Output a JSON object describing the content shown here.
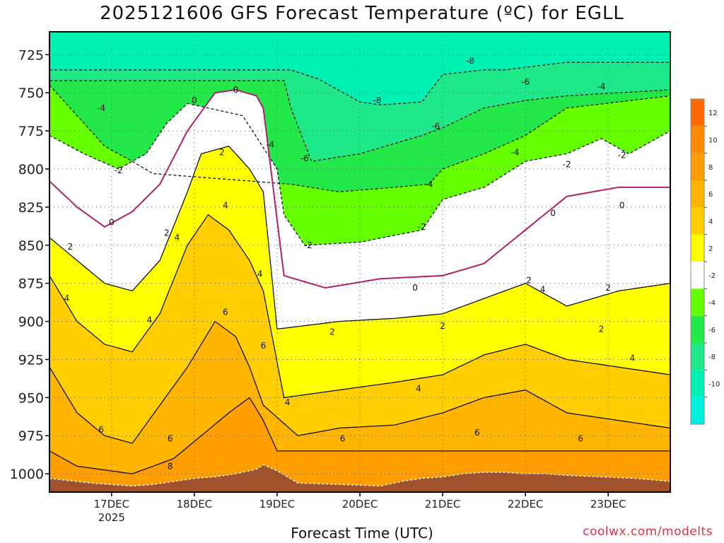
{
  "title": "2025121606 GFS Forecast Temperature (ºC) for EGLL",
  "xlabel": "Forecast Time (UTC)",
  "credit": "coolwx.com/modelts",
  "chart_data": {
    "type": "heatmap",
    "title": "2025121606 GFS Forecast Temperature (ºC) for EGLL",
    "xlabel": "Forecast Time (UTC)",
    "ylabel": "",
    "x_range": [
      "2025-12-16 06:00",
      "2025-12-23 18:00"
    ],
    "y_range_hpa": [
      1012,
      710
    ],
    "y_ticks": [
      725,
      750,
      775,
      800,
      825,
      850,
      875,
      900,
      925,
      950,
      975,
      1000
    ],
    "x_ticks": [
      {
        "label": "17DEC",
        "sub": "2025",
        "hours": 18
      },
      {
        "label": "18DEC",
        "sub": "",
        "hours": 42
      },
      {
        "label": "19DEC",
        "sub": "",
        "hours": 66
      },
      {
        "label": "20DEC",
        "sub": "",
        "hours": 90
      },
      {
        "label": "21DEC",
        "sub": "",
        "hours": 114
      },
      {
        "label": "22DEC",
        "sub": "",
        "hours": 138
      },
      {
        "label": "23DEC",
        "sub": "",
        "hours": 162
      }
    ],
    "x_max_hours": 180,
    "grid": true,
    "colorbar": {
      "ticks": [
        12,
        10,
        8,
        6,
        4,
        2,
        -2,
        -4,
        -6,
        -8,
        -10
      ],
      "bands": [
        {
          "from": 12,
          "to": 14,
          "color": "#ff6a00"
        },
        {
          "from": 10,
          "to": 12,
          "color": "#ff8a00"
        },
        {
          "from": 8,
          "to": 10,
          "color": "#ff9e00"
        },
        {
          "from": 6,
          "to": 8,
          "color": "#ffb400"
        },
        {
          "from": 4,
          "to": 6,
          "color": "#ffcd00"
        },
        {
          "from": 2,
          "to": 4,
          "color": "#ffff00"
        },
        {
          "from": -2,
          "to": 2,
          "color": "#ffffff"
        },
        {
          "from": -4,
          "to": -2,
          "color": "#66ff00"
        },
        {
          "from": -6,
          "to": -4,
          "color": "#22e84a"
        },
        {
          "from": -8,
          "to": -6,
          "color": "#1ee888"
        },
        {
          "from": -10,
          "to": -8,
          "color": "#00f0b4"
        },
        {
          "from": -12,
          "to": -10,
          "color": "#00f0e0"
        }
      ]
    },
    "surface_pressure_hpa": [
      1003,
      1006,
      1008,
      1007,
      1005,
      1003,
      1002,
      1000,
      997,
      994,
      998,
      1006,
      1007,
      1008,
      1005,
      1003,
      1002,
      1000,
      999,
      999,
      1000,
      1000,
      1001,
      1002,
      1003,
      1005
    ],
    "surface_hours": [
      0,
      12,
      24,
      30,
      36,
      42,
      48,
      54,
      60,
      62,
      66,
      72,
      84,
      96,
      102,
      108,
      114,
      120,
      126,
      132,
      138,
      144,
      150,
      160,
      170,
      180
    ],
    "surface_color": "#a0522d",
    "contours": [
      {
        "temp": -8,
        "pressure": [
          735,
          741,
          756,
          758,
          756,
          738,
          735,
          735,
          730
        ],
        "hours": [
          70,
          78,
          90,
          96,
          108,
          114,
          126,
          132,
          150
        ]
      },
      {
        "temp": -6,
        "pressure": [
          742,
          760,
          795,
          790,
          778,
          773,
          760,
          755,
          752,
          748
        ],
        "hours": [
          68,
          70,
          76,
          90,
          108,
          114,
          126,
          138,
          150,
          180
        ]
      },
      {
        "temp": -4,
        "pressure": [
          745,
          765,
          785,
          795,
          803,
          810,
          815,
          812,
          810,
          800,
          795,
          790,
          778,
          760,
          752
        ],
        "hours": [
          0,
          8,
          16,
          24,
          30,
          70,
          84,
          100,
          110,
          114,
          120,
          126,
          138,
          150,
          180
        ]
      },
      {
        "temp": -2,
        "pressure": [
          778,
          790,
          800,
          790,
          770,
          757,
          765,
          800,
          830,
          850,
          848,
          840,
          820,
          812,
          795,
          790,
          780,
          790,
          775
        ],
        "hours": [
          0,
          10,
          20,
          28,
          34,
          40,
          56,
          66,
          68,
          74,
          90,
          108,
          114,
          126,
          138,
          150,
          160,
          168,
          180
        ]
      },
      {
        "temp": 0,
        "pressure": [
          808,
          825,
          838,
          828,
          810,
          775,
          750,
          748,
          752,
          760,
          870,
          878,
          872,
          870,
          862,
          840,
          818,
          812,
          812
        ],
        "hours": [
          0,
          8,
          16,
          24,
          32,
          40,
          48,
          54,
          60,
          62,
          68,
          80,
          96,
          114,
          126,
          138,
          150,
          165,
          180
        ]
      },
      {
        "temp": 2,
        "pressure": [
          845,
          860,
          875,
          880,
          860,
          815,
          790,
          785,
          800,
          815,
          905,
          900,
          898,
          895,
          885,
          875,
          890,
          880,
          875
        ],
        "hours": [
          0,
          8,
          16,
          24,
          32,
          40,
          44,
          52,
          58,
          62,
          66,
          84,
          100,
          114,
          126,
          138,
          150,
          165,
          180
        ]
      },
      {
        "temp": 4,
        "pressure": [
          870,
          900,
          915,
          920,
          895,
          850,
          830,
          840,
          860,
          880,
          950,
          945,
          940,
          935,
          922,
          915,
          925,
          930,
          935
        ],
        "hours": [
          0,
          8,
          16,
          24,
          32,
          40,
          46,
          52,
          58,
          62,
          68,
          84,
          100,
          114,
          126,
          138,
          150,
          165,
          180
        ]
      },
      {
        "temp": 6,
        "pressure": [
          930,
          960,
          975,
          980,
          955,
          930,
          900,
          910,
          930,
          955,
          975,
          970,
          968,
          960,
          950,
          945,
          960,
          965,
          970
        ],
        "hours": [
          0,
          8,
          16,
          24,
          32,
          40,
          48,
          54,
          58,
          62,
          72,
          84,
          100,
          114,
          126,
          138,
          150,
          165,
          180
        ]
      },
      {
        "temp": 8,
        "pressure": [
          985,
          995,
          1000,
          990,
          975,
          960,
          950,
          965,
          985
        ],
        "hours": [
          0,
          8,
          24,
          36,
          44,
          52,
          58,
          62,
          66
        ]
      }
    ],
    "contour_labels": [
      {
        "text": "-8",
        "hours": 95,
        "pressure": 755
      },
      {
        "text": "-8",
        "hours": 122,
        "pressure": 729
      },
      {
        "text": "-6",
        "hours": 74,
        "pressure": 793
      },
      {
        "text": "-6",
        "hours": 112,
        "pressure": 772
      },
      {
        "text": "-6",
        "hours": 138,
        "pressure": 743
      },
      {
        "text": "-4",
        "hours": 15,
        "pressure": 760
      },
      {
        "text": "-4",
        "hours": 64,
        "pressure": 784
      },
      {
        "text": "-4",
        "hours": 110,
        "pressure": 810
      },
      {
        "text": "-4",
        "hours": 135,
        "pressure": 789
      },
      {
        "text": "-4",
        "hours": 160,
        "pressure": 746
      },
      {
        "text": "-2",
        "hours": 20,
        "pressure": 801
      },
      {
        "text": "-2",
        "hours": 75,
        "pressure": 850
      },
      {
        "text": "-2",
        "hours": 108,
        "pressure": 838
      },
      {
        "text": "-2",
        "hours": 150,
        "pressure": 797
      },
      {
        "text": "-2",
        "hours": 166,
        "pressure": 791
      },
      {
        "text": "0",
        "hours": 18,
        "pressure": 835
      },
      {
        "text": "0",
        "hours": 42,
        "pressure": 755
      },
      {
        "text": "0",
        "hours": 54,
        "pressure": 748
      },
      {
        "text": "0",
        "hours": 106,
        "pressure": 878
      },
      {
        "text": "0",
        "hours": 146,
        "pressure": 829
      },
      {
        "text": "0",
        "hours": 166,
        "pressure": 824
      },
      {
        "text": "2",
        "hours": 6,
        "pressure": 851
      },
      {
        "text": "2",
        "hours": 34,
        "pressure": 842
      },
      {
        "text": "2",
        "hours": 50,
        "pressure": 789
      },
      {
        "text": "2",
        "hours": 82,
        "pressure": 907
      },
      {
        "text": "2",
        "hours": 114,
        "pressure": 903
      },
      {
        "text": "2",
        "hours": 139,
        "pressure": 873
      },
      {
        "text": "2",
        "hours": 160,
        "pressure": 905
      },
      {
        "text": "2",
        "hours": 162,
        "pressure": 878
      },
      {
        "text": "4",
        "hours": 5,
        "pressure": 885
      },
      {
        "text": "4",
        "hours": 29,
        "pressure": 899
      },
      {
        "text": "4",
        "hours": 37,
        "pressure": 845
      },
      {
        "text": "4",
        "hours": 51,
        "pressure": 824
      },
      {
        "text": "4",
        "hours": 61,
        "pressure": 869
      },
      {
        "text": "4",
        "hours": 69,
        "pressure": 953
      },
      {
        "text": "4",
        "hours": 107,
        "pressure": 944
      },
      {
        "text": "4",
        "hours": 143,
        "pressure": 879
      },
      {
        "text": "4",
        "hours": 169,
        "pressure": 924
      },
      {
        "text": "6",
        "hours": 15,
        "pressure": 971
      },
      {
        "text": "6",
        "hours": 35,
        "pressure": 977
      },
      {
        "text": "6",
        "hours": 51,
        "pressure": 894
      },
      {
        "text": "6",
        "hours": 62,
        "pressure": 916
      },
      {
        "text": "6",
        "hours": 85,
        "pressure": 977
      },
      {
        "text": "6",
        "hours": 124,
        "pressure": 973
      },
      {
        "text": "6",
        "hours": 154,
        "pressure": 977
      },
      {
        "text": "8",
        "hours": 35,
        "pressure": 995
      }
    ]
  }
}
